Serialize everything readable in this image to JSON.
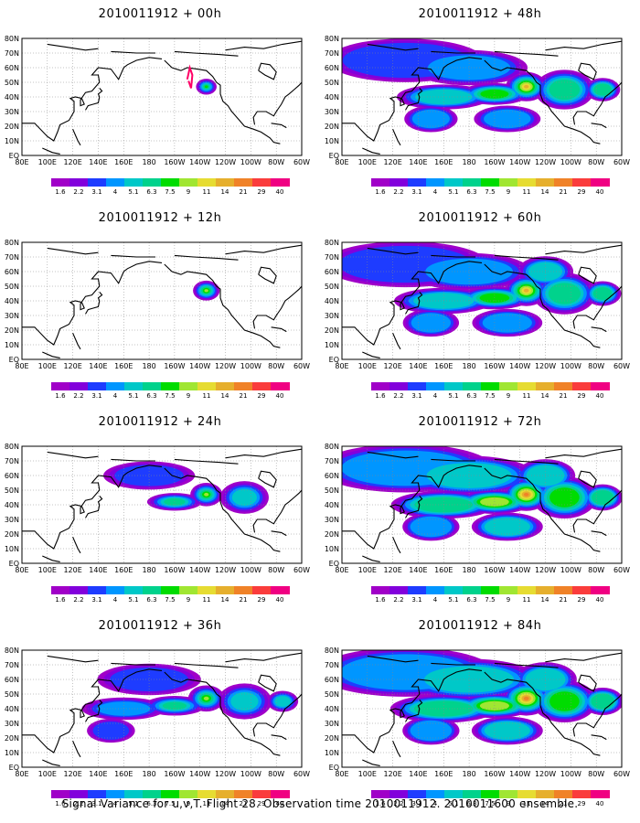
{
  "caption": "Signal Variance for u,v,T. Flight 28. Observation time 2010011912. 2010011600 ensemble.",
  "lon_labels": [
    "80E",
    "100E",
    "120E",
    "140E",
    "160E",
    "180",
    "160W",
    "140W",
    "120W",
    "100W",
    "80W",
    "60W"
  ],
  "lat_labels": [
    "EQ",
    "10N",
    "20N",
    "30N",
    "40N",
    "50N",
    "60N",
    "70N",
    "80N"
  ],
  "colorbar": {
    "labels": [
      "1.6",
      "2.2",
      "3.1",
      "4",
      "5.1",
      "6.3",
      "7.5",
      "9",
      "11",
      "14",
      "21",
      "29",
      "40"
    ],
    "colors": [
      "#a000c8",
      "#8200dc",
      "#1e3cff",
      "#0096ff",
      "#00c8c8",
      "#00d28c",
      "#00dc00",
      "#a0e632",
      "#e6dc32",
      "#e6af2d",
      "#f08228",
      "#fa3c3c",
      "#f00082"
    ]
  },
  "panels": [
    {
      "title": "2010011912 + 00h",
      "lead_hours": 0,
      "max_level": 6,
      "spread": 0.18
    },
    {
      "title": "2010011912 + 48h",
      "lead_hours": 48,
      "max_level": 9,
      "spread": 0.75
    },
    {
      "title": "2010011912 + 12h",
      "lead_hours": 12,
      "max_level": 7,
      "spread": 0.35
    },
    {
      "title": "2010011912 + 60h",
      "lead_hours": 60,
      "max_level": 9,
      "spread": 0.82
    },
    {
      "title": "2010011912 + 24h",
      "lead_hours": 24,
      "max_level": 7,
      "spread": 0.5
    },
    {
      "title": "2010011912 + 72h",
      "lead_hours": 72,
      "max_level": 10,
      "spread": 0.9
    },
    {
      "title": "2010011912 + 36h",
      "lead_hours": 36,
      "max_level": 7,
      "spread": 0.62
    },
    {
      "title": "2010011912 + 84h",
      "lead_hours": 84,
      "max_level": 10,
      "spread": 0.97
    }
  ]
}
